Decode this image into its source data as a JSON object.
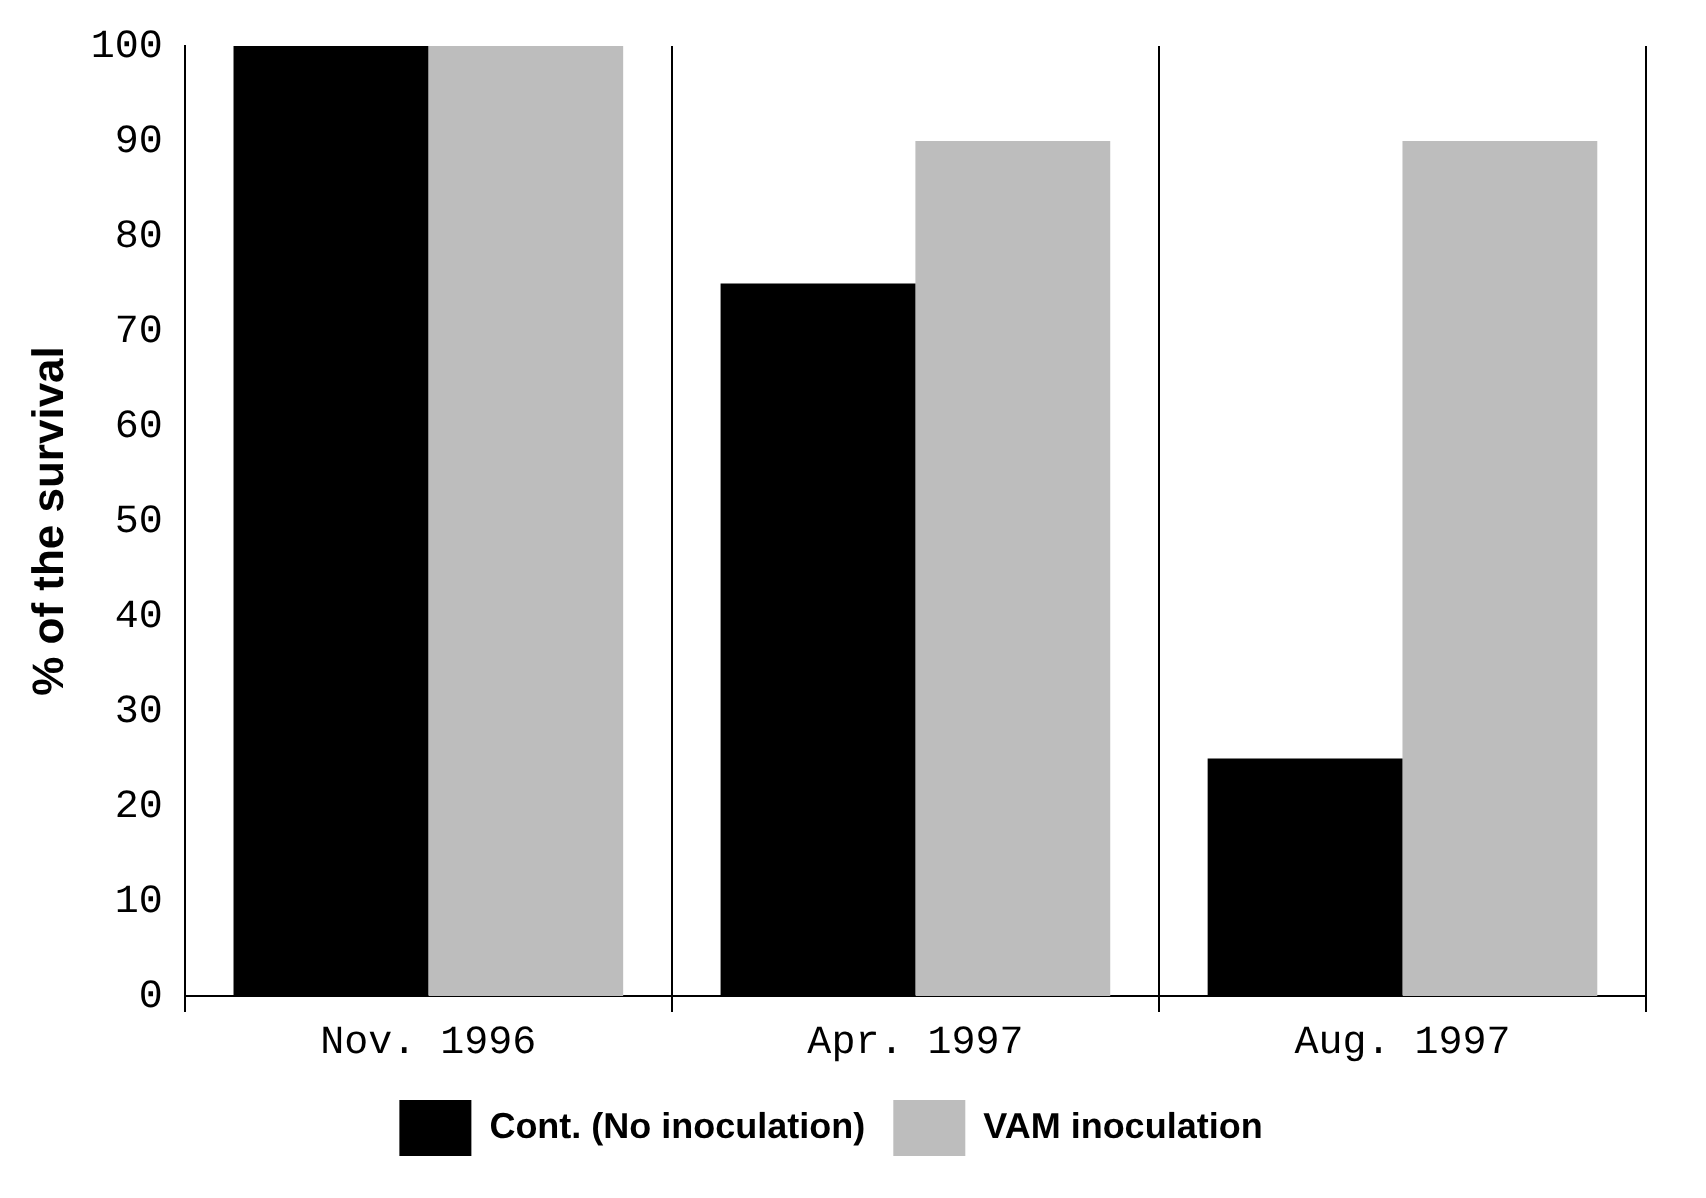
{
  "chart_data": {
    "type": "bar",
    "ylabel": "% of the survival",
    "categories": [
      "Nov. 1996",
      "Apr. 1997",
      "Aug. 1997"
    ],
    "series": [
      {
        "name": "Cont. (No inoculation)",
        "color": "#000000",
        "values": [
          100,
          75,
          25
        ]
      },
      {
        "name": "VAM inoculation",
        "color": "#bdbdbd",
        "values": [
          100,
          90,
          90
        ]
      }
    ],
    "ylim": [
      0,
      100
    ],
    "yticks": [
      0,
      10,
      20,
      30,
      40,
      50,
      60,
      70,
      80,
      90,
      100
    ],
    "grid": "x",
    "legend": "bottom"
  }
}
